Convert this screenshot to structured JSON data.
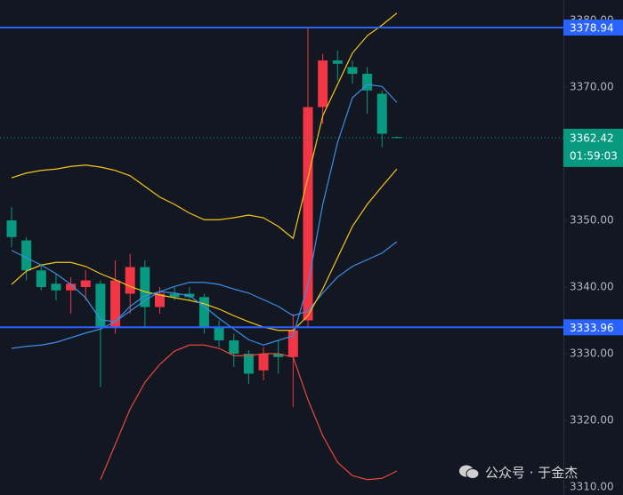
{
  "chart_data": {
    "type": "candlestick",
    "open": [
      3350,
      3347,
      3342.5,
      3340.5,
      3339.5,
      3340,
      3340.5,
      3334,
      3339,
      3343,
      3337,
      3339,
      3339,
      3338.5,
      3334,
      3332,
      3330,
      3327.5,
      3330,
      3329.5,
      3335,
      3367,
      3374,
      3373,
      3372,
      3369,
      3362.5
    ],
    "high": [
      3352,
      3347.5,
      3343.5,
      3342,
      3341.5,
      3342.5,
      3341,
      3344,
      3345,
      3344,
      3340,
      3340,
      3340,
      3339,
      3335,
      3333,
      3330.5,
      3331,
      3332,
      3336,
      3379,
      3375,
      3375.5,
      3374,
      3373,
      3369.5,
      3362.6
    ],
    "low": [
      3346,
      3341,
      3339.5,
      3338,
      3336,
      3338,
      3325,
      3333,
      3336,
      3334,
      3336,
      3338,
      3338,
      3333,
      3331,
      3328,
      3325.5,
      3326,
      3327,
      3322,
      3334,
      3364.5,
      3371,
      3370.5,
      3366,
      3361,
      3362.3
    ],
    "close": [
      3347.5,
      3342.5,
      3340,
      3339.5,
      3340.5,
      3341,
      3334,
      3341,
      3343,
      3337,
      3339,
      3338.5,
      3338.5,
      3334,
      3332,
      3330,
      3327,
      3330,
      3329.5,
      3333.5,
      3367,
      3374,
      3373.5,
      3372,
      3369.5,
      3363,
      3362.42
    ],
    "up_color": "#f23645",
    "down_color": "#089981",
    "indicators": [
      {
        "color": "#f5c518",
        "values": [
          3356.4,
          3357.1,
          3357.5,
          3357.7,
          3358.1,
          3358.3,
          3358.0,
          3357.5,
          3356.7,
          3355.1,
          3353.5,
          3352.4,
          3351.1,
          3350.1,
          3350.1,
          3350.4,
          3350.8,
          3350.4,
          3349.1,
          3347.3,
          3356.4,
          3365.7,
          3370.4,
          3375.1,
          3377.7,
          3379.3,
          3381.1
        ]
      },
      {
        "color": "#e8483c",
        "values": [
          null,
          null,
          null,
          null,
          null,
          null,
          3311.1,
          3316.4,
          3321.7,
          3325.7,
          3328.4,
          3330.4,
          3331.3,
          3331.3,
          3330.8,
          3329.7,
          3329.7,
          3330.0,
          3330.0,
          3329.5,
          3323.1,
          3317.7,
          3313.7,
          3311.7,
          3311.1,
          3311.3,
          3312.4
        ]
      },
      {
        "color": "#3a8ee6",
        "values": [
          3330.8,
          3331.1,
          3331.3,
          3331.7,
          3332.4,
          3333.1,
          3333.7,
          3334.8,
          3336.4,
          3338.0,
          3339.3,
          3340.1,
          3340.7,
          3340.7,
          3340.4,
          3339.7,
          3339.1,
          3338.1,
          3337.1,
          3335.7,
          3336.4,
          3339.1,
          3341.5,
          3343.1,
          3344.1,
          3345.1,
          3346.8
        ]
      },
      {
        "color": "#f5c518",
        "values": [
          3340.4,
          3342.4,
          3343.3,
          3343.7,
          3343.7,
          3343.1,
          3342.0,
          3341.1,
          3340.1,
          3339.3,
          3338.8,
          3338.4,
          3338.0,
          3337.5,
          3336.7,
          3335.7,
          3334.8,
          3334.0,
          3333.5,
          3333.5,
          3335.7,
          3339.7,
          3344.4,
          3349.1,
          3352.4,
          3355.1,
          3357.7
        ]
      },
      {
        "color": "#3a8ee6",
        "values": [
          3345.5,
          3344.4,
          3343.3,
          3342.0,
          3340.4,
          3338.4,
          3335.1,
          3334.8,
          3337.1,
          3338.7,
          3339.3,
          3339.1,
          3338.7,
          3337.1,
          3335.3,
          3333.7,
          3332.1,
          3331.3,
          3332.0,
          3332.7,
          3340.4,
          3352.4,
          3361.7,
          3368.4,
          3370.4,
          3370.1,
          3367.7
        ]
      }
    ],
    "levels": [
      {
        "value": 3378.94,
        "color": "#2962ff"
      },
      {
        "value": 3333.96,
        "color": "#2962ff"
      }
    ],
    "last_price": 3362.42,
    "countdown": "01:59:03",
    "ylim": [
      3308.8,
      3383.07
    ],
    "yticks": [
      {
        "value": 3380,
        "label": "3380.00"
      },
      {
        "value": 3370,
        "label": "3370.00"
      },
      {
        "value": 3350,
        "label": "3350.00"
      },
      {
        "value": 3340,
        "label": "3340.00"
      },
      {
        "value": 3330,
        "label": "3330.00"
      },
      {
        "value": 3320,
        "label": "3320.00"
      },
      {
        "value": 3310,
        "label": "3310.00"
      }
    ]
  },
  "watermark": "公众号 · 于金杰"
}
